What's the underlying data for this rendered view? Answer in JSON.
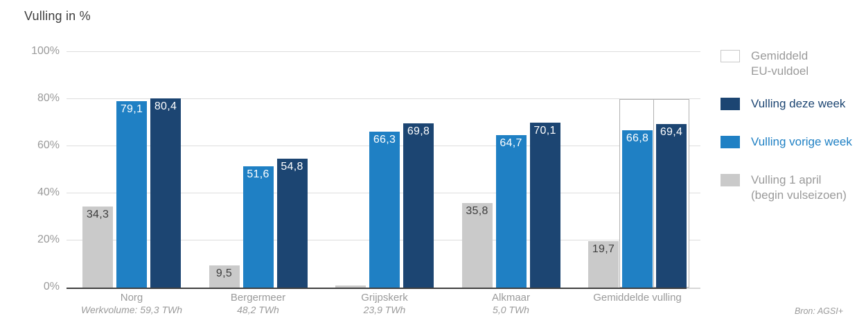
{
  "chart_data": {
    "type": "bar",
    "title": "Vulling in %",
    "source_note": "Bron: AGSI+",
    "ylim": [
      0,
      100
    ],
    "grid": true,
    "legend_position": "right",
    "yticks": [
      {
        "value": 0,
        "label": "0%"
      },
      {
        "value": 20,
        "label": "20%"
      },
      {
        "value": 40,
        "label": "40%"
      },
      {
        "value": 60,
        "label": "60%"
      },
      {
        "value": 80,
        "label": "80%"
      },
      {
        "value": 100,
        "label": "100%"
      }
    ],
    "categories": [
      "Norg",
      "Bergermeer",
      "Grijpskerk",
      "Alkmaar",
      "Gemiddelde vulling"
    ],
    "category_subtitles": [
      "Werkvolume: 59,3 TWh",
      "48,2 TWh",
      "23,9 TWh",
      "5,0 TWh",
      ""
    ],
    "series": [
      {
        "name": "Vulling 1 april (begin vulseizoen)",
        "color_key": "gray_bar",
        "label_style": "dark",
        "values": [
          34.3,
          9.5,
          1.0,
          35.8,
          19.7
        ],
        "labels": [
          "34,3",
          "9,5",
          "",
          "35,8",
          "19,7"
        ]
      },
      {
        "name": "Vulling vorige week",
        "color_key": "light_blue",
        "label_style": "white",
        "values": [
          79.1,
          51.6,
          66.3,
          64.7,
          66.8
        ],
        "labels": [
          "79,1",
          "51,6",
          "66,3",
          "64,7",
          "66,8"
        ]
      },
      {
        "name": "Vulling deze week",
        "color_key": "dark_blue",
        "label_style": "white",
        "values": [
          80.4,
          54.8,
          69.8,
          70.1,
          69.4
        ],
        "labels": [
          "80,4",
          "54,8",
          "69,8",
          "70,1",
          "69,4"
        ]
      }
    ],
    "eu_target": {
      "label": "Gemiddeld EU-vuldoel",
      "value": 80,
      "category": "Gemiddelde vulling",
      "series": [
        "Vulling vorige week",
        "Vulling deze week"
      ]
    },
    "legend": {
      "items": [
        {
          "label": "Gemiddeld\nEU-vuldoel",
          "swatch": "outline",
          "text_color": "#9a9a9a"
        },
        {
          "label": "Vulling deze week",
          "swatch": "dark_blue",
          "text_color": "#1c4572"
        },
        {
          "label": "Vulling vorige week",
          "swatch": "light_blue",
          "text_color": "#1f80c4"
        },
        {
          "label": "Vulling 1 april\n(begin vulseizoen)",
          "swatch": "gray_bar",
          "text_color": "#9a9a9a"
        }
      ]
    },
    "colors": {
      "dark_blue": "#1c4572",
      "light_blue": "#1f80c4",
      "gray_bar": "#cacaca",
      "eu_outline_border": "#b0b0b0",
      "grid": "#dddddd",
      "baseline": "#3f3f3f",
      "axis_text": "#9a9a9a",
      "dark_text": "#3d3d3d",
      "white_text": "#ffffff"
    }
  }
}
